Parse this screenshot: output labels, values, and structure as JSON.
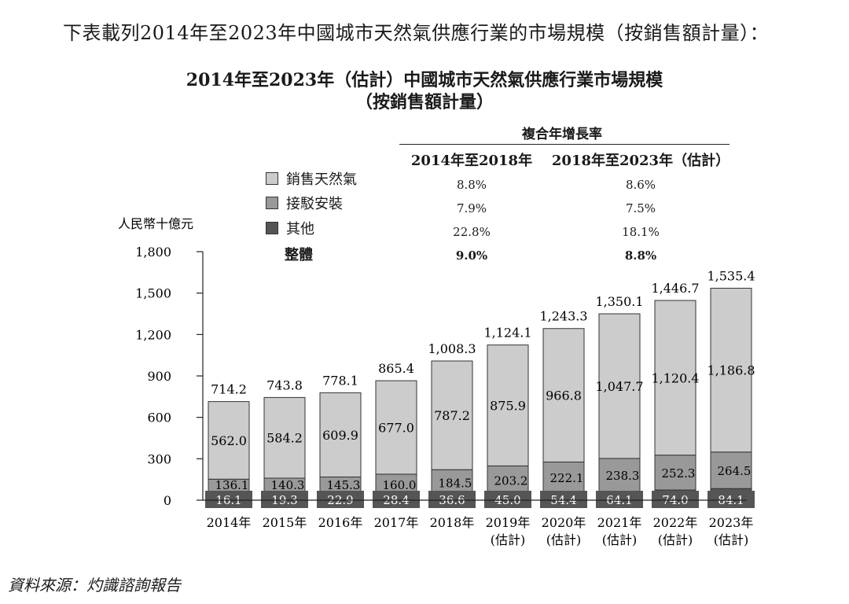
{
  "intro_text": "下表載列2014年至2023年中國城市天然氣供應行業的市場規模（按銷售額計量）：",
  "cagr": {
    "header": "複合年增長率",
    "columns": [
      "2014年至2018年",
      "2018年至2023年（估計）"
    ],
    "rows": [
      {
        "label": "銷售天然氣",
        "values": [
          "8.8%",
          "8.6%"
        ]
      },
      {
        "label": "接駁安裝",
        "values": [
          "7.9%",
          "7.5%"
        ]
      },
      {
        "label": "其他",
        "values": [
          "22.8%",
          "18.1%"
        ]
      },
      {
        "label": "整體",
        "values": [
          "9.0%",
          "8.8%"
        ]
      }
    ]
  },
  "source_text": "資料來源：灼識諮詢報告",
  "chart_data": {
    "type": "bar",
    "stacked": true,
    "title": "2014年至2023年（估計）中國城市天然氣供應行業市場規模",
    "subtitle": "（按銷售額計量）",
    "ylabel": "人民幣十億元",
    "ylim": [
      0,
      1800
    ],
    "yticks": [
      "0",
      "300",
      "600",
      "900",
      "1,200",
      "1,500",
      "1,800"
    ],
    "yticks_values": [
      0,
      300,
      600,
      900,
      1200,
      1500,
      1800
    ],
    "categories": [
      "2014年",
      "2015年",
      "2016年",
      "2017年",
      "2018年",
      "2019年",
      "2020年",
      "2021年",
      "2022年",
      "2023年"
    ],
    "category_notes": [
      "",
      "",
      "",
      "",
      "",
      "(估計)",
      "(估計)",
      "(估計)",
      "(估計)",
      "(估計)"
    ],
    "series": [
      {
        "name": "其他",
        "values": [
          16.1,
          19.3,
          22.9,
          28.4,
          36.6,
          45.0,
          54.4,
          64.1,
          74.0,
          84.1
        ],
        "labels": [
          "16.1",
          "19.3",
          "22.9",
          "28.4",
          "36.6",
          "45.0",
          "54.4",
          "64.1",
          "74.0",
          "84.1"
        ],
        "color": "#555555"
      },
      {
        "name": "接駁安裝",
        "values": [
          136.1,
          140.3,
          145.3,
          160.0,
          184.5,
          203.2,
          222.1,
          238.3,
          252.3,
          264.5
        ],
        "labels": [
          "136.1",
          "140.3",
          "145.3",
          "160.0",
          "184.5",
          "203.2",
          "222.1",
          "238.3",
          "252.3",
          "264.5"
        ],
        "color": "#999999"
      },
      {
        "name": "銷售天然氣",
        "values": [
          562.0,
          584.2,
          609.9,
          677.0,
          787.2,
          875.9,
          966.8,
          1047.7,
          1120.4,
          1186.8
        ],
        "labels": [
          "562.0",
          "584.2",
          "609.9",
          "677.0",
          "787.2",
          "875.9",
          "966.8",
          "1,047.7",
          "1,120.4",
          "1,186.8"
        ],
        "color": "#cccccc"
      }
    ],
    "totals": [
      714.2,
      743.8,
      778.1,
      865.4,
      1008.3,
      1124.1,
      1243.3,
      1350.1,
      1446.7,
      1535.4
    ],
    "total_labels": [
      "714.2",
      "743.8",
      "778.1",
      "865.4",
      "1,008.3",
      "1,124.1",
      "1,243.3",
      "1,350.1",
      "1,446.7",
      "1,535.4"
    ],
    "legend_position": "top-center"
  }
}
